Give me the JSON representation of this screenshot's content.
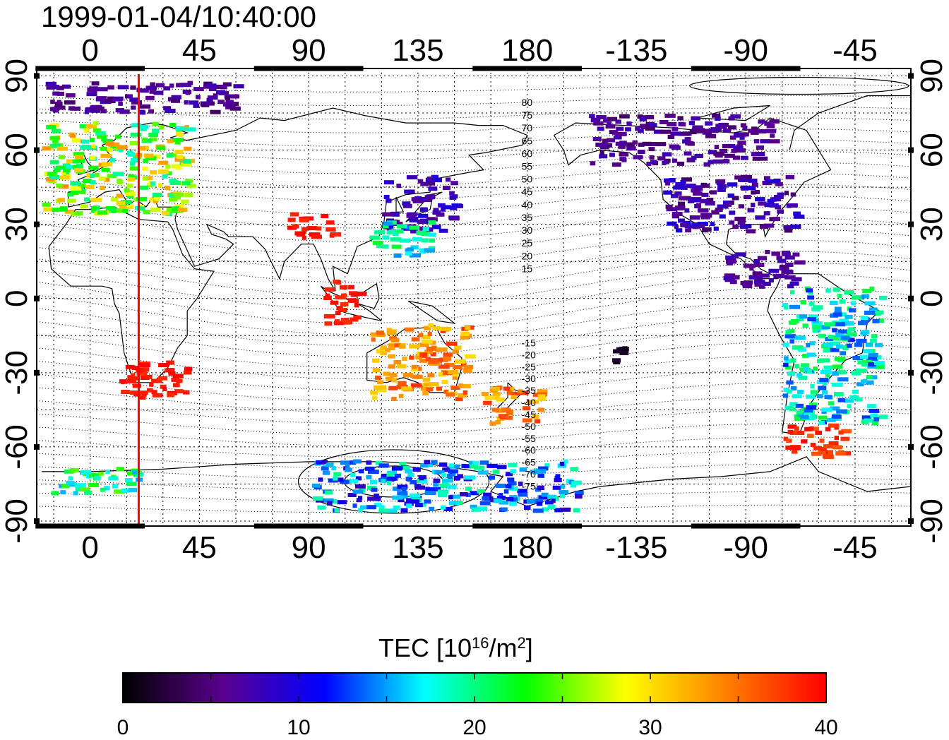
{
  "title": "1999-01-04/10:40:00",
  "map": {
    "lon_tick_labels": [
      "0",
      "45",
      "90",
      "135",
      "180",
      "-135",
      "-90",
      "-45"
    ],
    "lon_tick_values": [
      0,
      45,
      90,
      135,
      180,
      225,
      270,
      315
    ],
    "lat_tick_labels_left": [
      "90",
      "60",
      "30",
      "0",
      "-30",
      "-60",
      "-90"
    ],
    "lat_tick_labels_right": [
      "90",
      "60",
      "30",
      "0",
      "-30",
      "-60",
      "-90"
    ],
    "lat_tick_values": [
      90,
      60,
      30,
      0,
      -30,
      -60,
      -90
    ],
    "lon_range": [
      -22,
      338
    ],
    "lat_range": [
      -92,
      93
    ],
    "grid": true,
    "meridian_marker_lon": 20,
    "meridian_marker_color": "#ff0000",
    "magnetic_latitude_labels": [
      "80",
      "75",
      "70",
      "65",
      "60",
      "55",
      "50",
      "45",
      "40",
      "35",
      "30",
      "25",
      "20",
      "15",
      "-15",
      "-20",
      "-25",
      "-30",
      "-35",
      "-40",
      "-45",
      "-50",
      "-55",
      "-60",
      "-65",
      "-70",
      "-75"
    ]
  },
  "colorbar": {
    "title_main": "TEC  [10",
    "title_sup1": "16",
    "title_mid": "/m",
    "title_sup2": "2",
    "title_end": "]",
    "tick_labels": [
      "0",
      "10",
      "20",
      "30",
      "40"
    ],
    "range": [
      0,
      40
    ],
    "colors": [
      "#000000",
      "#5a0090",
      "#0000ff",
      "#00ffff",
      "#00ff00",
      "#ffff00",
      "#ff8000",
      "#ff0000"
    ]
  },
  "chart_data": {
    "type": "scatter",
    "description_value": "TEC",
    "value_range": [
      0,
      40
    ],
    "regions": [
      {
        "lon": [
          -20,
          40
        ],
        "lat": [
          35,
          72
        ],
        "tec": [
          18,
          34
        ]
      },
      {
        "lon": [
          -20,
          60
        ],
        "lat": [
          76,
          88
        ],
        "tec": [
          4,
          8
        ]
      },
      {
        "lon": [
          120,
          150
        ],
        "lat": [
          28,
          50
        ],
        "tec": [
          5,
          10
        ]
      },
      {
        "lon": [
          115,
          140
        ],
        "lat": [
          18,
          32
        ],
        "tec": [
          14,
          22
        ]
      },
      {
        "lon": [
          235,
          290
        ],
        "lat": [
          28,
          50
        ],
        "tec": [
          4,
          10
        ]
      },
      {
        "lon": [
          205,
          280
        ],
        "lat": [
          55,
          75
        ],
        "tec": [
          4,
          8
        ]
      },
      {
        "lon": [
          260,
          290
        ],
        "lat": [
          5,
          20
        ],
        "tec": [
          5,
          8
        ]
      },
      {
        "lon": [
          285,
          325
        ],
        "lat": [
          -50,
          5
        ],
        "tec": [
          12,
          22
        ]
      },
      {
        "lon": [
          285,
          310
        ],
        "lat": [
          -65,
          -50
        ],
        "tec": [
          36,
          40
        ]
      },
      {
        "lon": [
          95,
          110
        ],
        "lat": [
          -10,
          8
        ],
        "tec": [
          38,
          40
        ]
      },
      {
        "lon": [
          80,
          100
        ],
        "lat": [
          25,
          35
        ],
        "tec": [
          38,
          40
        ]
      },
      {
        "lon": [
          10,
          40
        ],
        "lat": [
          -40,
          -25
        ],
        "tec": [
          38,
          40
        ]
      },
      {
        "lon": [
          160,
          185
        ],
        "lat": [
          -50,
          -35
        ],
        "tec": [
          30,
          38
        ]
      },
      {
        "lon": [
          115,
          155
        ],
        "lat": [
          -40,
          -10
        ],
        "tec": [
          30,
          38
        ]
      },
      {
        "lon": [
          -20,
          20
        ],
        "lat": [
          -78,
          -68
        ],
        "tec": [
          15,
          25
        ]
      },
      {
        "lon": [
          90,
          200
        ],
        "lat": [
          -85,
          -65
        ],
        "tec": [
          8,
          20
        ]
      },
      {
        "lon": [
          215,
          220
        ],
        "lat": [
          -25,
          -18
        ],
        "tec": [
          0,
          2
        ]
      }
    ]
  }
}
